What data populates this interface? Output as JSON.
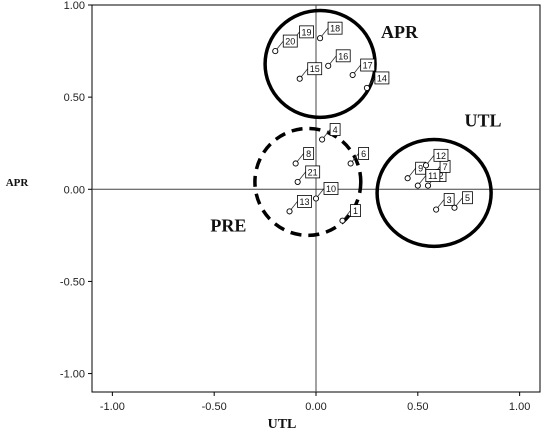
{
  "chart_data": {
    "type": "scatter",
    "title": "",
    "xlabel": "UTL",
    "ylabel": "APR",
    "xlim": [
      -1.1,
      1.1
    ],
    "ylim": [
      -1.1,
      1.0
    ],
    "xticks": [
      -1.0,
      -0.5,
      0.0,
      0.5,
      1.0
    ],
    "yticks": [
      -1.0,
      -0.5,
      0.0,
      0.5,
      1.0
    ],
    "xtick_labels": [
      "-1.00",
      "-0.50",
      "0.00",
      "0.50",
      "1.00"
    ],
    "ytick_labels": [
      "-1.00",
      "-0.50",
      "0.00",
      "0.50",
      "1.00"
    ],
    "grid": false,
    "reference_lines": {
      "x": 0.0,
      "y": 0.0
    },
    "points": [
      {
        "label": "1",
        "x": 0.13,
        "y": -0.17
      },
      {
        "label": "2",
        "x": 0.55,
        "y": 0.02
      },
      {
        "label": "3",
        "x": 0.59,
        "y": -0.11
      },
      {
        "label": "4",
        "x": 0.03,
        "y": 0.27
      },
      {
        "label": "5",
        "x": 0.68,
        "y": -0.1
      },
      {
        "label": "6",
        "x": 0.17,
        "y": 0.14
      },
      {
        "label": "7",
        "x": 0.57,
        "y": 0.07
      },
      {
        "label": "8",
        "x": -0.1,
        "y": 0.14
      },
      {
        "label": "9",
        "x": 0.45,
        "y": 0.06
      },
      {
        "label": "10",
        "x": 0.0,
        "y": -0.05
      },
      {
        "label": "11",
        "x": 0.5,
        "y": 0.02
      },
      {
        "label": "12",
        "x": 0.54,
        "y": 0.13
      },
      {
        "label": "13",
        "x": -0.13,
        "y": -0.12
      },
      {
        "label": "14",
        "x": 0.25,
        "y": 0.55
      },
      {
        "label": "15",
        "x": -0.08,
        "y": 0.6
      },
      {
        "label": "16",
        "x": 0.06,
        "y": 0.67
      },
      {
        "label": "17",
        "x": 0.18,
        "y": 0.62
      },
      {
        "label": "18",
        "x": 0.02,
        "y": 0.82
      },
      {
        "label": "19",
        "x": -0.12,
        "y": 0.8
      },
      {
        "label": "20",
        "x": -0.2,
        "y": 0.75
      },
      {
        "label": "21",
        "x": -0.09,
        "y": 0.04
      }
    ],
    "groups": [
      {
        "name": "APR",
        "center": [
          0.02,
          0.68
        ],
        "radius_x": 0.27,
        "radius_y": 0.29,
        "style": "solid",
        "label_x": 0.41,
        "label_y": 0.82
      },
      {
        "name": "UTL",
        "center": [
          0.58,
          -0.02
        ],
        "radius_x": 0.28,
        "radius_y": 0.29,
        "style": "solid",
        "label_x": 0.82,
        "label_y": 0.34
      },
      {
        "name": "PRE",
        "center": [
          -0.04,
          0.04
        ],
        "radius_x": 0.26,
        "radius_y": 0.29,
        "style": "dashed",
        "label_x": -0.43,
        "label_y": -0.23
      }
    ]
  }
}
